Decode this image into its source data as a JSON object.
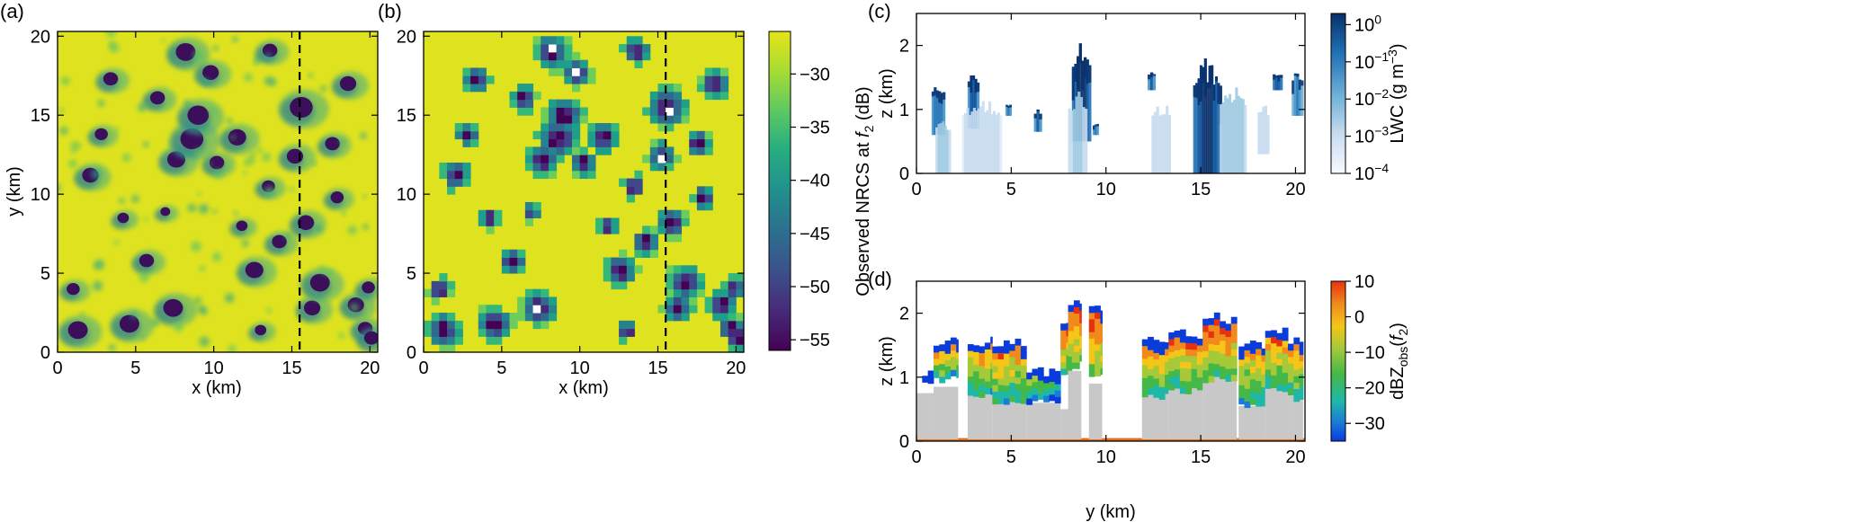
{
  "chart_data": [
    {
      "panel": "(a)",
      "type": "heatmap",
      "xlabel": "x (km)",
      "ylabel": "y (km)",
      "xlim": [
        0,
        20.5
      ],
      "ylim": [
        0,
        20.3
      ],
      "xticks": [
        0,
        5,
        10,
        15,
        20
      ],
      "yticks": [
        0,
        5,
        10,
        15,
        20
      ],
      "background_value_dB": -27,
      "dashed_line_x": 15.5,
      "features": [
        {
          "x": 1.3,
          "y": 1.4,
          "r": 0.6
        },
        {
          "x": 2.1,
          "y": 11.2,
          "r": 0.5
        },
        {
          "x": 1.0,
          "y": 4.0,
          "r": 0.4
        },
        {
          "x": 3.4,
          "y": 17.3,
          "r": 0.45
        },
        {
          "x": 2.8,
          "y": 13.8,
          "r": 0.4
        },
        {
          "x": 4.6,
          "y": 1.8,
          "r": 0.6
        },
        {
          "x": 5.7,
          "y": 5.8,
          "r": 0.45
        },
        {
          "x": 6.4,
          "y": 16.1,
          "r": 0.45
        },
        {
          "x": 7.6,
          "y": 12.2,
          "r": 0.55
        },
        {
          "x": 7.4,
          "y": 2.8,
          "r": 0.6
        },
        {
          "x": 8.6,
          "y": 13.5,
          "r": 0.7
        },
        {
          "x": 9.0,
          "y": 15.0,
          "r": 0.65
        },
        {
          "x": 8.2,
          "y": 19.0,
          "r": 0.6
        },
        {
          "x": 9.8,
          "y": 17.7,
          "r": 0.5
        },
        {
          "x": 10.2,
          "y": 12.0,
          "r": 0.45
        },
        {
          "x": 11.5,
          "y": 13.6,
          "r": 0.55
        },
        {
          "x": 12.6,
          "y": 5.2,
          "r": 0.55
        },
        {
          "x": 13.6,
          "y": 19.1,
          "r": 0.45
        },
        {
          "x": 13.5,
          "y": 10.5,
          "r": 0.4
        },
        {
          "x": 14.2,
          "y": 7.0,
          "r": 0.45
        },
        {
          "x": 15.6,
          "y": 15.5,
          "r": 0.7
        },
        {
          "x": 15.2,
          "y": 12.4,
          "r": 0.5
        },
        {
          "x": 15.9,
          "y": 8.2,
          "r": 0.5
        },
        {
          "x": 16.3,
          "y": 2.8,
          "r": 0.5
        },
        {
          "x": 16.8,
          "y": 4.4,
          "r": 0.6
        },
        {
          "x": 17.6,
          "y": 13.2,
          "r": 0.45
        },
        {
          "x": 17.9,
          "y": 9.8,
          "r": 0.4
        },
        {
          "x": 18.6,
          "y": 17.0,
          "r": 0.5
        },
        {
          "x": 19.1,
          "y": 3.0,
          "r": 0.5
        },
        {
          "x": 19.7,
          "y": 1.5,
          "r": 0.45
        },
        {
          "x": 20.1,
          "y": 0.9,
          "r": 0.45
        },
        {
          "x": 19.9,
          "y": 4.1,
          "r": 0.4
        },
        {
          "x": 11.8,
          "y": 8.0,
          "r": 0.35
        },
        {
          "x": 4.2,
          "y": 8.5,
          "r": 0.35
        },
        {
          "x": 6.9,
          "y": 8.9,
          "r": 0.3
        },
        {
          "x": 13.0,
          "y": 1.4,
          "r": 0.35
        }
      ]
    },
    {
      "panel": "(b)",
      "type": "heatmap",
      "xlabel": "x (km)",
      "xlim": [
        0,
        20.5
      ],
      "ylim": [
        0,
        20.3
      ],
      "xticks": [
        0,
        5,
        10,
        15,
        20
      ],
      "yticks": [
        0,
        5,
        10,
        15,
        20
      ],
      "background_value_dB": -27,
      "dashed_line_x": 15.5,
      "colorbar": {
        "label_prefix": "Observed NRCS at ",
        "label_var": "f",
        "label_sub": "2",
        "label_suffix": " (dB)",
        "range": [
          -56,
          -26
        ],
        "ticks": [
          -30,
          -35,
          -40,
          -45,
          -50,
          -55
        ],
        "tick_labels": [
          "−30",
          "−35",
          "−40",
          "−45",
          "−50",
          "−55"
        ]
      }
    },
    {
      "panel": "(c)",
      "type": "heatmap",
      "ylabel": "z (km)",
      "xlim": [
        0,
        20.5
      ],
      "ylim": [
        0,
        2.5
      ],
      "xticks": [
        0,
        5,
        10,
        15,
        20
      ],
      "yticks": [
        0,
        1,
        2
      ],
      "scale": "log",
      "columns": [
        {
          "y0": 0.8,
          "y1": 1.5,
          "z0": 0.6,
          "z1": 1.45,
          "peak": 0.12
        },
        {
          "y0": 1.0,
          "y1": 1.8,
          "z0": 0.0,
          "z1": 0.9,
          "peak": 0.002
        },
        {
          "y0": 2.7,
          "y1": 3.3,
          "z0": 0.7,
          "z1": 1.6,
          "peak": 0.4
        },
        {
          "y0": 2.4,
          "y1": 4.5,
          "z0": 0.0,
          "z1": 1.2,
          "peak": 0.0006
        },
        {
          "y0": 4.7,
          "y1": 5.0,
          "z0": 0.9,
          "z1": 1.1,
          "peak": 0.1
        },
        {
          "y0": 6.2,
          "y1": 6.6,
          "z0": 0.65,
          "z1": 1.0,
          "peak": 0.2
        },
        {
          "y0": 8.2,
          "y1": 9.2,
          "z0": 0.5,
          "z1": 2.05,
          "peak": 1.5
        },
        {
          "y0": 8.0,
          "y1": 9.0,
          "z0": 0.0,
          "z1": 1.3,
          "peak": 0.002
        },
        {
          "y0": 9.3,
          "y1": 9.6,
          "z0": 0.6,
          "z1": 0.8,
          "peak": 0.1
        },
        {
          "y0": 12.2,
          "y1": 12.6,
          "z0": 1.3,
          "z1": 1.6,
          "peak": 0.2
        },
        {
          "y0": 12.4,
          "y1": 13.4,
          "z0": 0.0,
          "z1": 1.2,
          "peak": 0.001
        },
        {
          "y0": 14.6,
          "y1": 16.1,
          "z0": 0.0,
          "z1": 1.82,
          "peak": 1.5
        },
        {
          "y0": 16.0,
          "y1": 17.4,
          "z0": 0.0,
          "z1": 1.4,
          "peak": 0.004
        },
        {
          "y0": 18.8,
          "y1": 19.3,
          "z0": 1.3,
          "z1": 1.6,
          "peak": 0.5
        },
        {
          "y0": 19.8,
          "y1": 20.4,
          "z0": 0.9,
          "z1": 1.6,
          "peak": 0.05
        },
        {
          "y0": 18.0,
          "y1": 18.6,
          "z0": 0.3,
          "z1": 1.1,
          "peak": 0.001
        }
      ],
      "colorbar": {
        "label_prefix": "LWC (g m",
        "label_sup": "−3",
        "label_suffix": ")",
        "range_log10": [
          -4,
          0.3
        ],
        "ticks_log10": [
          0,
          -1,
          -2,
          -3,
          -4
        ],
        "tick_base": "10",
        "tick_exponents": [
          "0",
          "−1",
          "−2",
          "−3",
          "−4"
        ]
      }
    },
    {
      "panel": "(d)",
      "type": "heatmap",
      "xlabel": "y (km)",
      "ylabel": "z (km)",
      "xlim": [
        0,
        20.5
      ],
      "ylim": [
        0,
        2.5
      ],
      "xticks": [
        0,
        5,
        10,
        15,
        20
      ],
      "yticks": [
        0,
        1,
        2
      ],
      "columns": [
        {
          "y0": 0.0,
          "y1": 0.9,
          "top": 1.05,
          "bottom": 0.9,
          "grey": 0.75
        },
        {
          "y0": 0.9,
          "y1": 2.2,
          "top": 1.6,
          "bottom": 0.9,
          "grey": 0.85
        },
        {
          "y0": 2.7,
          "y1": 4.0,
          "top": 1.6,
          "bottom": 0.6,
          "grey": 0.8
        },
        {
          "y0": 4.0,
          "y1": 5.8,
          "top": 1.55,
          "bottom": 0.55,
          "grey": 0.7
        },
        {
          "y0": 5.8,
          "y1": 7.6,
          "top": 1.1,
          "bottom": 0.55,
          "grey": 0.6
        },
        {
          "y0": 7.6,
          "y1": 8.6,
          "top": 1.9,
          "bottom": 1.0,
          "grey": 0.5
        },
        {
          "y0": 8.0,
          "y1": 8.7,
          "top": 2.2,
          "bottom": 1.2,
          "grey": 1.1
        },
        {
          "y0": 9.1,
          "y1": 9.8,
          "top": 2.1,
          "bottom": 1.0,
          "grey": 0.9
        },
        {
          "y0": 11.9,
          "y1": 13.3,
          "top": 1.6,
          "bottom": 0.6,
          "grey": 0.75
        },
        {
          "y0": 13.3,
          "y1": 15.1,
          "top": 1.7,
          "bottom": 0.7,
          "grey": 0.85
        },
        {
          "y0": 15.1,
          "y1": 16.9,
          "top": 1.95,
          "bottom": 0.9,
          "grey": 1.45
        },
        {
          "y0": 17.0,
          "y1": 18.4,
          "top": 1.5,
          "bottom": 0.5,
          "grey": 0.55
        },
        {
          "y0": 18.4,
          "y1": 19.6,
          "top": 1.7,
          "bottom": 0.7,
          "grey": 1.0
        },
        {
          "y0": 19.6,
          "y1": 20.4,
          "top": 1.6,
          "bottom": 0.6,
          "grey": 1.0
        }
      ],
      "surface_z": 0.02,
      "colorbar": {
        "label_prefix": "dBZ",
        "label_sub": "obs",
        "label_mid": "(",
        "label_var": "f",
        "label_sub2": "2",
        "label_suffix": ")",
        "range": [
          -35,
          10
        ],
        "ticks": [
          10,
          0,
          -10,
          -20,
          -30
        ],
        "tick_labels": [
          "10",
          "0",
          "−10",
          "−20",
          "−30"
        ]
      }
    }
  ]
}
